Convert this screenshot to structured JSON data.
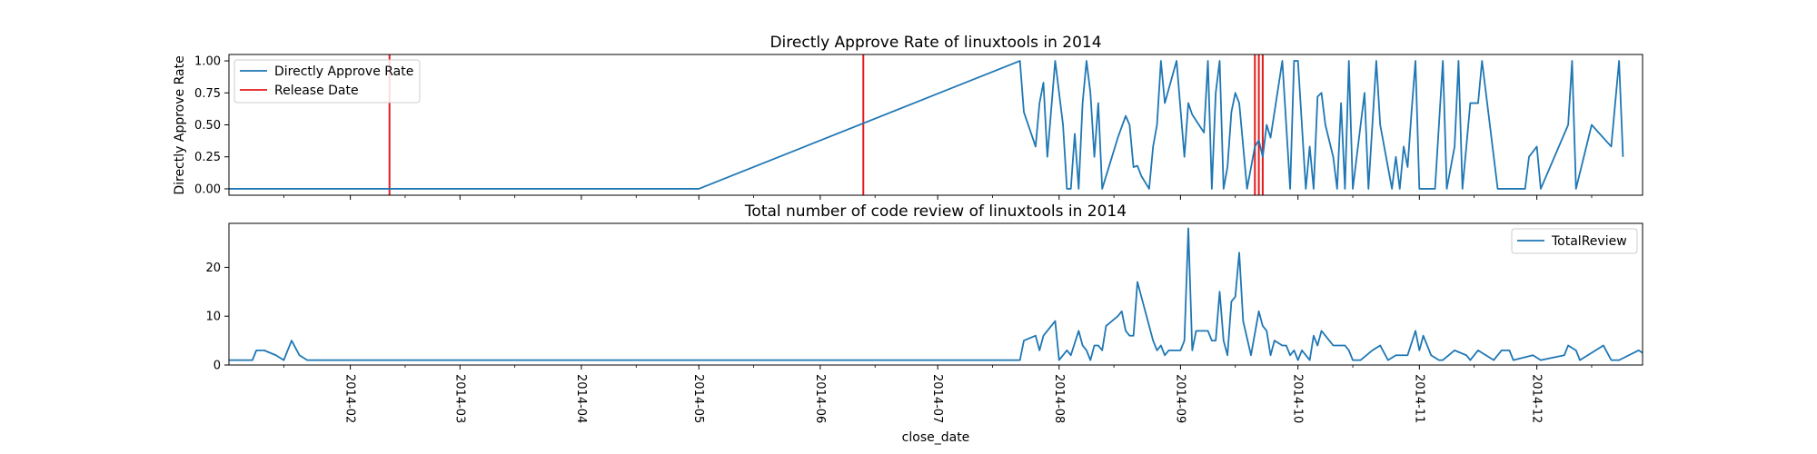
{
  "chart_data": [
    {
      "type": "line",
      "title": "Directly Approve Rate of linuxtools in 2014",
      "xlabel": "",
      "ylabel": "Directly Approve Rate",
      "xlim": [
        "2014-01-01",
        "2014-12-28"
      ],
      "ylim": [
        -0.05,
        1.05
      ],
      "yticks": [
        0.0,
        0.25,
        0.5,
        0.75,
        1.0
      ],
      "ytick_labels": [
        "0.00",
        "0.25",
        "0.50",
        "0.75",
        "1.00"
      ],
      "grid": false,
      "legend": "top-left",
      "series": [
        {
          "name": "Directly Approve Rate",
          "color": "#1f77b4",
          "points": [
            [
              "2014-01-01",
              0
            ],
            [
              "2014-05-01",
              0
            ],
            [
              "2014-07-22",
              1
            ],
            [
              "2014-07-23",
              0.6
            ],
            [
              "2014-07-26",
              0.33
            ],
            [
              "2014-07-27",
              0.67
            ],
            [
              "2014-07-28",
              0.83
            ],
            [
              "2014-07-29",
              0.25
            ],
            [
              "2014-07-31",
              1
            ],
            [
              "2014-08-02",
              0.5
            ],
            [
              "2014-08-03",
              0
            ],
            [
              "2014-08-04",
              0
            ],
            [
              "2014-08-05",
              0.43
            ],
            [
              "2014-08-06",
              0
            ],
            [
              "2014-08-07",
              0.67
            ],
            [
              "2014-08-08",
              1
            ],
            [
              "2014-08-09",
              0.75
            ],
            [
              "2014-08-10",
              0.25
            ],
            [
              "2014-08-11",
              0.67
            ],
            [
              "2014-08-12",
              0
            ],
            [
              "2014-08-16",
              0.4
            ],
            [
              "2014-08-18",
              0.57
            ],
            [
              "2014-08-19",
              0.5
            ],
            [
              "2014-08-20",
              0.17
            ],
            [
              "2014-08-21",
              0.18
            ],
            [
              "2014-08-22",
              0.1
            ],
            [
              "2014-08-24",
              0
            ],
            [
              "2014-08-25",
              0.33
            ],
            [
              "2014-08-26",
              0.5
            ],
            [
              "2014-08-27",
              1
            ],
            [
              "2014-08-28",
              0.67
            ],
            [
              "2014-08-31",
              1
            ],
            [
              "2014-09-02",
              0.25
            ],
            [
              "2014-09-03",
              0.67
            ],
            [
              "2014-09-04",
              0.58
            ],
            [
              "2014-09-07",
              0.44
            ],
            [
              "2014-09-08",
              1
            ],
            [
              "2014-09-09",
              0
            ],
            [
              "2014-09-10",
              0.75
            ],
            [
              "2014-09-11",
              1
            ],
            [
              "2014-09-12",
              0
            ],
            [
              "2014-09-13",
              0.17
            ],
            [
              "2014-09-14",
              0.6
            ],
            [
              "2014-09-15",
              0.75
            ],
            [
              "2014-09-16",
              0.67
            ],
            [
              "2014-09-18",
              0
            ],
            [
              "2014-09-20",
              0.33
            ],
            [
              "2014-09-21",
              0.38
            ],
            [
              "2014-09-22",
              0.25
            ],
            [
              "2014-09-23",
              0.5
            ],
            [
              "2014-09-24",
              0.4
            ],
            [
              "2014-09-27",
              1
            ],
            [
              "2014-09-28",
              0.5
            ],
            [
              "2014-09-29",
              0
            ],
            [
              "2014-09-30",
              1
            ],
            [
              "2014-10-01",
              1
            ],
            [
              "2014-10-02",
              0.5
            ],
            [
              "2014-10-03",
              0
            ],
            [
              "2014-10-04",
              0.33
            ],
            [
              "2014-10-05",
              0
            ],
            [
              "2014-10-06",
              0.72
            ],
            [
              "2014-10-07",
              0.75
            ],
            [
              "2014-10-08",
              0.5
            ],
            [
              "2014-10-10",
              0.25
            ],
            [
              "2014-10-11",
              0
            ],
            [
              "2014-10-12",
              0.67
            ],
            [
              "2014-10-13",
              0
            ],
            [
              "2014-10-14",
              1
            ],
            [
              "2014-10-15",
              0
            ],
            [
              "2014-10-18",
              0.75
            ],
            [
              "2014-10-19",
              0
            ],
            [
              "2014-10-21",
              1
            ],
            [
              "2014-10-22",
              0.5
            ],
            [
              "2014-10-25",
              0
            ],
            [
              "2014-10-26",
              0.25
            ],
            [
              "2014-10-27",
              0
            ],
            [
              "2014-10-28",
              0.33
            ],
            [
              "2014-10-29",
              0.17
            ],
            [
              "2014-10-30",
              0.6
            ],
            [
              "2014-10-31",
              1
            ],
            [
              "2014-11-01",
              0
            ],
            [
              "2014-11-05",
              0
            ],
            [
              "2014-11-07",
              1
            ],
            [
              "2014-11-08",
              0
            ],
            [
              "2014-11-10",
              0.33
            ],
            [
              "2014-11-11",
              1
            ],
            [
              "2014-11-12",
              0
            ],
            [
              "2014-11-13",
              0.33
            ],
            [
              "2014-11-14",
              0.67
            ],
            [
              "2014-11-16",
              0.67
            ],
            [
              "2014-11-17",
              1
            ],
            [
              "2014-11-19",
              0.5
            ],
            [
              "2014-11-21",
              0
            ],
            [
              "2014-11-28",
              0
            ],
            [
              "2014-11-29",
              0.25
            ],
            [
              "2014-12-01",
              0.33
            ],
            [
              "2014-12-02",
              0
            ],
            [
              "2014-12-09",
              0.5
            ],
            [
              "2014-12-10",
              1
            ],
            [
              "2014-12-11",
              0
            ],
            [
              "2014-12-15",
              0.5
            ],
            [
              "2014-12-20",
              0.33
            ],
            [
              "2014-12-22",
              1
            ],
            [
              "2014-12-23",
              0.25
            ]
          ]
        }
      ],
      "release_dates": {
        "name": "Release Date",
        "color": "#e41a1c",
        "dates": [
          "2014-02-11",
          "2014-06-12",
          "2014-09-20",
          "2014-09-21",
          "2014-09-22"
        ]
      }
    },
    {
      "type": "line",
      "title": "Total number of code review of linuxtools in 2014",
      "xlabel": "close_date",
      "ylabel": "",
      "xlim": [
        "2014-01-01",
        "2014-12-28"
      ],
      "ylim": [
        0,
        29
      ],
      "yticks": [
        0,
        10,
        20
      ],
      "ytick_labels": [
        "0",
        "10",
        "20"
      ],
      "xtick_labels": [
        "2014-02",
        "2014-03",
        "2014-04",
        "2014-05",
        "2014-06",
        "2014-07",
        "2014-08",
        "2014-09",
        "2014-10",
        "2014-11",
        "2014-12"
      ],
      "grid": false,
      "legend": "top-right",
      "series": [
        {
          "name": "TotalReview",
          "color": "#1f77b4",
          "points": [
            [
              "2014-01-01",
              1
            ],
            [
              "2014-01-07",
              1
            ],
            [
              "2014-01-08",
              3
            ],
            [
              "2014-01-10",
              3
            ],
            [
              "2014-01-13",
              2
            ],
            [
              "2014-01-15",
              1
            ],
            [
              "2014-01-17",
              5
            ],
            [
              "2014-01-19",
              2
            ],
            [
              "2014-01-21",
              1
            ],
            [
              "2014-05-01",
              1
            ],
            [
              "2014-07-22",
              1
            ],
            [
              "2014-07-23",
              5
            ],
            [
              "2014-07-26",
              6
            ],
            [
              "2014-07-27",
              3
            ],
            [
              "2014-07-28",
              6
            ],
            [
              "2014-07-30",
              8
            ],
            [
              "2014-07-31",
              9
            ],
            [
              "2014-08-01",
              1
            ],
            [
              "2014-08-03",
              3
            ],
            [
              "2014-08-04",
              2
            ],
            [
              "2014-08-06",
              7
            ],
            [
              "2014-08-07",
              4
            ],
            [
              "2014-08-08",
              3
            ],
            [
              "2014-08-09",
              1
            ],
            [
              "2014-08-10",
              4
            ],
            [
              "2014-08-11",
              4
            ],
            [
              "2014-08-12",
              3
            ],
            [
              "2014-08-13",
              8
            ],
            [
              "2014-08-16",
              10
            ],
            [
              "2014-08-17",
              11
            ],
            [
              "2014-08-18",
              7
            ],
            [
              "2014-08-19",
              6
            ],
            [
              "2014-08-20",
              6
            ],
            [
              "2014-08-21",
              17
            ],
            [
              "2014-08-23",
              11
            ],
            [
              "2014-08-25",
              5
            ],
            [
              "2014-08-26",
              3
            ],
            [
              "2014-08-27",
              4
            ],
            [
              "2014-08-28",
              2
            ],
            [
              "2014-08-29",
              3
            ],
            [
              "2014-08-31",
              3
            ],
            [
              "2014-09-01",
              3
            ],
            [
              "2014-09-02",
              5
            ],
            [
              "2014-09-03",
              28
            ],
            [
              "2014-09-04",
              3
            ],
            [
              "2014-09-05",
              7
            ],
            [
              "2014-09-08",
              7
            ],
            [
              "2014-09-09",
              5
            ],
            [
              "2014-09-10",
              5
            ],
            [
              "2014-09-11",
              15
            ],
            [
              "2014-09-12",
              5
            ],
            [
              "2014-09-13",
              2
            ],
            [
              "2014-09-14",
              13
            ],
            [
              "2014-09-15",
              14
            ],
            [
              "2014-09-16",
              23
            ],
            [
              "2014-09-17",
              9
            ],
            [
              "2014-09-19",
              2
            ],
            [
              "2014-09-21",
              11
            ],
            [
              "2014-09-22",
              8
            ],
            [
              "2014-09-23",
              7
            ],
            [
              "2014-09-24",
              2
            ],
            [
              "2014-09-25",
              5
            ],
            [
              "2014-09-27",
              4
            ],
            [
              "2014-09-28",
              4
            ],
            [
              "2014-09-29",
              2
            ],
            [
              "2014-09-30",
              3
            ],
            [
              "2014-10-01",
              1
            ],
            [
              "2014-10-02",
              3
            ],
            [
              "2014-10-03",
              2
            ],
            [
              "2014-10-04",
              1
            ],
            [
              "2014-10-05",
              6
            ],
            [
              "2014-10-06",
              4
            ],
            [
              "2014-10-07",
              7
            ],
            [
              "2014-10-09",
              5
            ],
            [
              "2014-10-10",
              4
            ],
            [
              "2014-10-13",
              4
            ],
            [
              "2014-10-14",
              3
            ],
            [
              "2014-10-15",
              1
            ],
            [
              "2014-10-17",
              1
            ],
            [
              "2014-10-20",
              3
            ],
            [
              "2014-10-22",
              4
            ],
            [
              "2014-10-24",
              1
            ],
            [
              "2014-10-26",
              2
            ],
            [
              "2014-10-29",
              2
            ],
            [
              "2014-10-31",
              7
            ],
            [
              "2014-11-01",
              3
            ],
            [
              "2014-11-02",
              6
            ],
            [
              "2014-11-04",
              2
            ],
            [
              "2014-11-06",
              1
            ],
            [
              "2014-11-07",
              1
            ],
            [
              "2014-11-10",
              3
            ],
            [
              "2014-11-13",
              2
            ],
            [
              "2014-11-14",
              1
            ],
            [
              "2014-11-16",
              3
            ],
            [
              "2014-11-18",
              2
            ],
            [
              "2014-11-20",
              1
            ],
            [
              "2014-11-22",
              3
            ],
            [
              "2014-11-24",
              3
            ],
            [
              "2014-11-25",
              1
            ],
            [
              "2014-11-30",
              2
            ],
            [
              "2014-12-02",
              1
            ],
            [
              "2014-12-08",
              2
            ],
            [
              "2014-12-09",
              4
            ],
            [
              "2014-12-11",
              3
            ],
            [
              "2014-12-12",
              1
            ],
            [
              "2014-12-18",
              4
            ],
            [
              "2014-12-20",
              1
            ],
            [
              "2014-12-22",
              1
            ],
            [
              "2014-12-27",
              3
            ],
            [
              "2014-12-29",
              2
            ],
            [
              "2014-12-30",
              4
            ]
          ]
        }
      ]
    }
  ]
}
